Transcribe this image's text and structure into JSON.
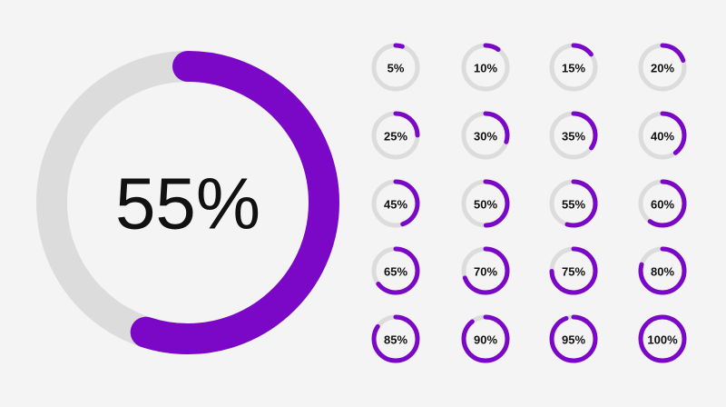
{
  "main": {
    "value": 55,
    "label": "55%"
  },
  "rings": [
    {
      "value": 5,
      "label": "5%"
    },
    {
      "value": 10,
      "label": "10%"
    },
    {
      "value": 15,
      "label": "15%"
    },
    {
      "value": 20,
      "label": "20%"
    },
    {
      "value": 25,
      "label": "25%"
    },
    {
      "value": 30,
      "label": "30%"
    },
    {
      "value": 35,
      "label": "35%"
    },
    {
      "value": 40,
      "label": "40%"
    },
    {
      "value": 45,
      "label": "45%"
    },
    {
      "value": 50,
      "label": "50%"
    },
    {
      "value": 55,
      "label": "55%"
    },
    {
      "value": 60,
      "label": "60%"
    },
    {
      "value": 65,
      "label": "65%"
    },
    {
      "value": 70,
      "label": "70%"
    },
    {
      "value": 75,
      "label": "75%"
    },
    {
      "value": 80,
      "label": "80%"
    },
    {
      "value": 85,
      "label": "85%"
    },
    {
      "value": 90,
      "label": "90%"
    },
    {
      "value": 95,
      "label": "95%"
    },
    {
      "value": 100,
      "label": "100%"
    }
  ],
  "track_color": "#dcdcdc",
  "progress_color": "#7b08c6",
  "scale_max": 100
}
